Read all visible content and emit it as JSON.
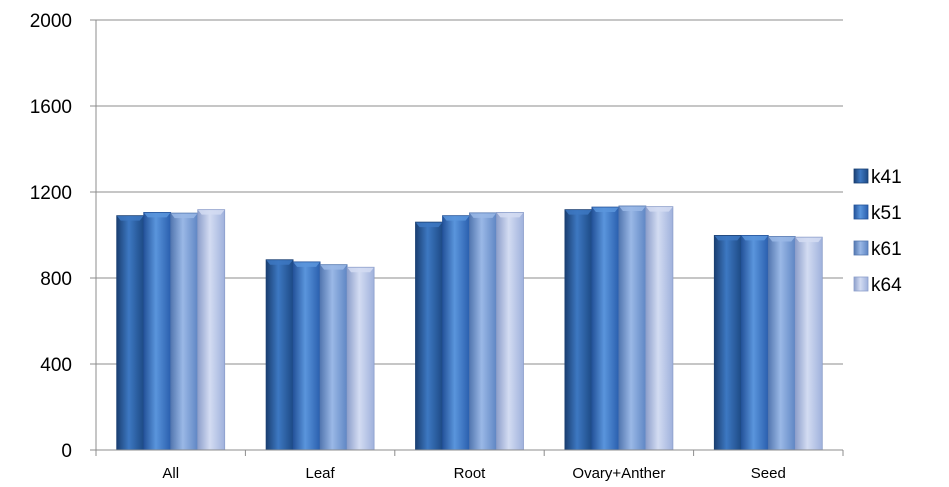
{
  "chart_data": {
    "type": "bar",
    "title": "",
    "xlabel": "",
    "ylabel": "",
    "categories": [
      "All",
      "Leaf",
      "Root",
      "Ovary+Anther",
      "Seed"
    ],
    "series": [
      {
        "name": "k41",
        "values": [
          1090,
          885,
          1060,
          1118,
          998
        ]
      },
      {
        "name": "k51",
        "values": [
          1105,
          875,
          1090,
          1130,
          998
        ]
      },
      {
        "name": "k61",
        "values": [
          1102,
          862,
          1103,
          1135,
          993
        ]
      },
      {
        "name": "k64",
        "values": [
          1118,
          850,
          1105,
          1132,
          990
        ]
      }
    ],
    "ylim": [
      0,
      2000
    ],
    "yticks": [
      "0",
      "400",
      "800",
      "1200",
      "1600",
      "2000"
    ],
    "grid": true,
    "legend_position": "right",
    "colors": {
      "k41": [
        "#1d4a85",
        "#3d78c2",
        "#1a3f72"
      ],
      "k51": [
        "#2a5fae",
        "#5a95dc",
        "#24539a"
      ],
      "k61": [
        "#5f86c4",
        "#9ab8e6",
        "#5377b0"
      ],
      "k64": [
        "#9fb1dc",
        "#d3dcf2",
        "#8d9fcb"
      ]
    }
  }
}
